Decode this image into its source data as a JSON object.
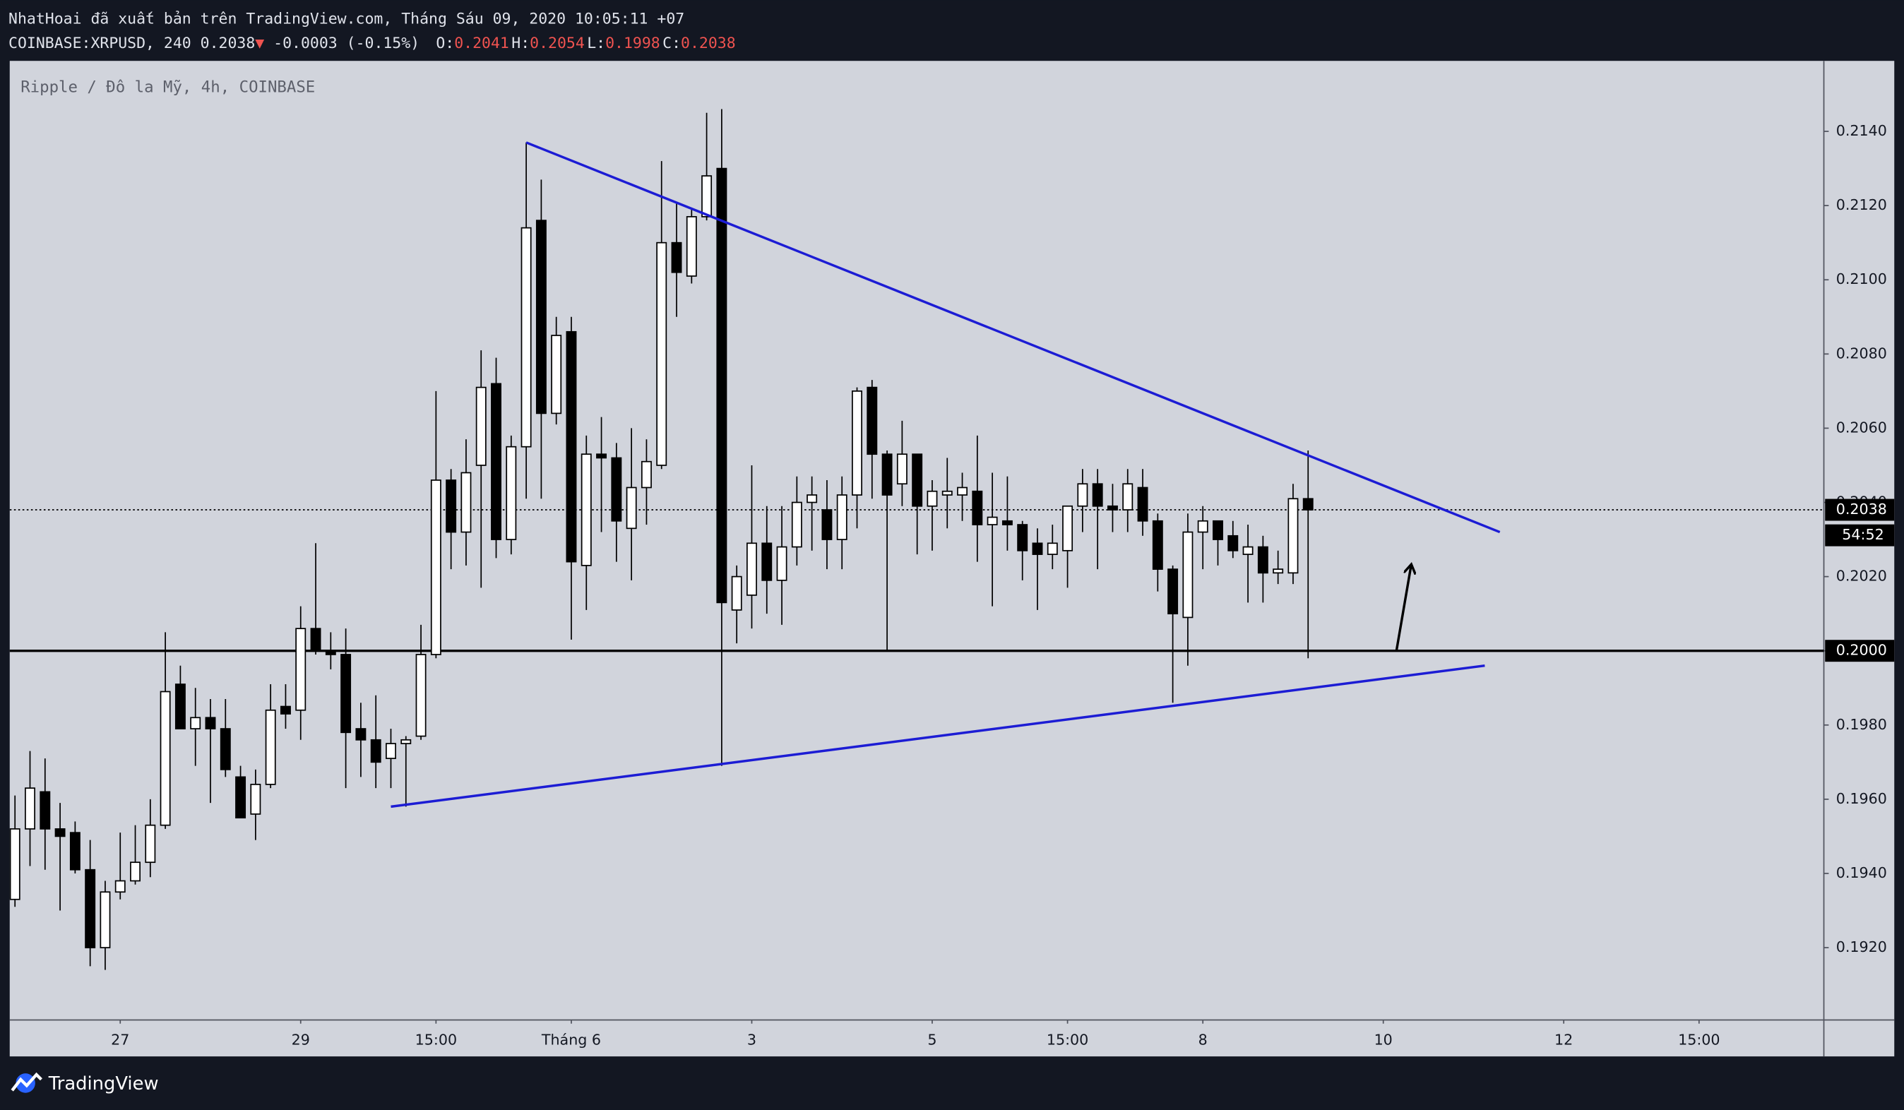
{
  "chart_data": {
    "type": "candlestick",
    "publication": "NhatHoai đã xuất bản trên TradingView.com, Tháng Sáu 09, 2020 10:05:11 +07",
    "symbol": "COINBASE:XRPUSD, 240",
    "last": 0.2038,
    "change_arrow": "▼",
    "change": "-0.0003 (-0.15%)",
    "ohlc_legend": [
      {
        "label": "O:",
        "value": 0.2041
      },
      {
        "label": "H:",
        "value": 0.2054
      },
      {
        "label": "L:",
        "value": 0.1998
      },
      {
        "label": "C:",
        "value": 0.2038
      }
    ],
    "title": "Ripple / Đô la Mỹ, 4h, COINBASE",
    "countdown": "54:52",
    "brand": "TradingView",
    "x": [
      -28,
      -24,
      -20,
      -16,
      -12,
      -8,
      -4,
      0,
      4,
      8,
      12,
      16,
      20,
      24,
      28,
      32,
      36,
      40,
      44,
      48,
      52,
      56,
      60,
      64,
      68,
      72,
      76,
      80,
      84,
      88,
      92,
      96,
      100,
      104,
      108,
      112,
      116,
      120,
      124,
      128,
      132,
      136,
      140,
      144,
      148,
      152,
      156,
      160,
      164,
      168,
      172,
      176,
      180,
      184,
      188,
      192,
      196,
      200,
      204,
      208,
      212,
      216,
      220,
      224,
      228,
      232,
      236,
      240,
      244,
      248,
      252,
      256,
      260,
      264,
      268,
      272,
      276,
      280,
      284,
      288,
      292,
      296,
      300,
      304,
      308,
      312,
      316
    ],
    "open": [
      0.1933,
      0.1952,
      0.1962,
      0.1952,
      0.1951,
      0.1941,
      0.192,
      0.1935,
      0.1938,
      0.1943,
      0.1953,
      0.1991,
      0.1979,
      0.1982,
      0.1979,
      0.1966,
      0.1956,
      0.1964,
      0.1985,
      0.1984,
      0.2006,
      0.2,
      0.1999,
      0.1979,
      0.1976,
      0.1971,
      0.1975,
      0.1977,
      0.1999,
      0.2046,
      0.2032,
      0.205,
      0.2072,
      0.203,
      0.2055,
      0.2116,
      0.2064,
      0.2086,
      0.2023,
      0.2053,
      0.2052,
      0.2033,
      0.2044,
      0.205,
      0.211,
      0.2101,
      0.2117,
      0.213,
      0.2011,
      0.2015,
      0.2029,
      0.2019,
      0.2028,
      0.204,
      0.2038,
      0.203,
      0.2042,
      0.2071,
      0.2053,
      0.2045,
      0.2053,
      0.2039,
      0.2042,
      0.2042,
      0.2043,
      0.2034,
      0.2035,
      0.2034,
      0.2029,
      0.2026,
      0.2027,
      0.2039,
      0.2045,
      0.2039,
      0.2038,
      0.2044,
      0.2035,
      0.2022,
      0.2009,
      0.2032,
      0.2035,
      0.2031,
      0.2026,
      0.2028,
      0.2021,
      0.2021,
      0.2041
    ],
    "high": [
      0.1961,
      0.1973,
      0.1971,
      0.1959,
      0.1954,
      0.1949,
      0.1938,
      0.1951,
      0.1953,
      0.196,
      0.2005,
      0.1996,
      0.199,
      0.1987,
      0.1987,
      0.1969,
      0.1968,
      0.1991,
      0.1991,
      0.2012,
      0.2029,
      0.2005,
      0.2006,
      0.1986,
      0.1988,
      0.1979,
      0.1977,
      0.2007,
      0.207,
      0.2049,
      0.2057,
      0.2081,
      0.2079,
      0.2058,
      0.2137,
      0.2127,
      0.209,
      0.209,
      0.2058,
      0.2063,
      0.2056,
      0.206,
      0.2057,
      0.2132,
      0.2121,
      0.2119,
      0.2145,
      0.2146,
      0.2023,
      0.205,
      0.2039,
      0.2039,
      0.2047,
      0.2047,
      0.2046,
      0.2047,
      0.2071,
      0.2073,
      0.2054,
      0.2062,
      0.2053,
      0.2046,
      0.2052,
      0.2048,
      0.2058,
      0.2048,
      0.2047,
      0.2035,
      0.2033,
      0.2034,
      0.2039,
      0.2049,
      0.2049,
      0.2045,
      0.2049,
      0.2049,
      0.2037,
      0.2023,
      0.2037,
      0.2039,
      0.2035,
      0.2035,
      0.2034,
      0.2031,
      0.2027,
      0.2045,
      0.2054
    ],
    "low": [
      0.1931,
      0.1942,
      0.1941,
      0.193,
      0.194,
      0.1915,
      0.1914,
      0.1933,
      0.1937,
      0.1939,
      0.1952,
      0.1979,
      0.1969,
      0.1959,
      0.1966,
      0.1956,
      0.1949,
      0.1963,
      0.1979,
      0.1976,
      0.1999,
      0.1995,
      0.1963,
      0.1966,
      0.1963,
      0.1963,
      0.1958,
      0.1976,
      0.1998,
      0.2022,
      0.2023,
      0.2017,
      0.2025,
      0.2026,
      0.2041,
      0.2041,
      0.2061,
      0.2003,
      0.2011,
      0.2032,
      0.2024,
      0.2019,
      0.2034,
      0.2049,
      0.209,
      0.2099,
      0.2116,
      0.1969,
      0.2002,
      0.2006,
      0.201,
      0.2007,
      0.2023,
      0.2027,
      0.2022,
      0.2022,
      0.2033,
      0.2041,
      0.2,
      0.2039,
      0.2026,
      0.2027,
      0.2033,
      0.2035,
      0.2024,
      0.2012,
      0.2027,
      0.2019,
      0.2011,
      0.2022,
      0.2017,
      0.2032,
      0.2022,
      0.2032,
      0.2032,
      0.2031,
      0.2016,
      0.1986,
      0.1996,
      0.2022,
      0.2023,
      0.2025,
      0.2013,
      0.2013,
      0.2018,
      0.2018,
      0.1998
    ],
    "close": [
      0.1952,
      0.1963,
      0.1952,
      0.195,
      0.1941,
      0.192,
      0.1935,
      0.1938,
      0.1943,
      0.1953,
      0.1989,
      0.1979,
      0.1982,
      0.1979,
      0.1968,
      0.1955,
      0.1964,
      0.1984,
      0.1983,
      0.2006,
      0.2,
      0.1999,
      0.1978,
      0.1976,
      0.197,
      0.1975,
      0.1976,
      0.1999,
      0.2046,
      0.2032,
      0.2048,
      0.2071,
      0.203,
      0.2055,
      0.2114,
      0.2064,
      0.2085,
      0.2024,
      0.2053,
      0.2052,
      0.2035,
      0.2044,
      0.2051,
      0.211,
      0.2102,
      0.2117,
      0.2128,
      0.2013,
      0.202,
      0.2029,
      0.2019,
      0.2028,
      0.204,
      0.2042,
      0.203,
      0.2042,
      0.207,
      0.2053,
      0.2042,
      0.2053,
      0.2039,
      0.2043,
      0.2043,
      0.2044,
      0.2034,
      0.2036,
      0.2034,
      0.2027,
      0.2026,
      0.2029,
      0.2039,
      0.2045,
      0.2039,
      0.2038,
      0.2045,
      0.2035,
      0.2022,
      0.201,
      0.2032,
      0.2035,
      0.203,
      0.2027,
      0.2028,
      0.2021,
      0.2022,
      0.2041,
      0.2038
    ],
    "up_color": "#ffffff",
    "down_color": "#000000",
    "wick_color": "#000000",
    "xlim": [
      -29.4,
      453.2
    ],
    "ylim": [
      0.19005,
      0.2159
    ],
    "xticks": [
      {
        "value": 0,
        "label": "27"
      },
      {
        "value": 48,
        "label": "29"
      },
      {
        "value": 84,
        "label": "15:00"
      },
      {
        "value": 120,
        "label": "Tháng 6"
      },
      {
        "value": 168,
        "label": "3"
      },
      {
        "value": 216,
        "label": "5"
      },
      {
        "value": 252,
        "label": "15:00"
      },
      {
        "value": 288,
        "label": "8"
      },
      {
        "value": 336,
        "label": "10"
      },
      {
        "value": 384,
        "label": "12"
      },
      {
        "value": 420,
        "label": "15:00"
      }
    ],
    "yticks": [
      {
        "value": 0.192,
        "label": "0.1920"
      },
      {
        "value": 0.194,
        "label": "0.1940"
      },
      {
        "value": 0.196,
        "label": "0.1960"
      },
      {
        "value": 0.198,
        "label": "0.1980"
      },
      {
        "value": 0.2,
        "label": "0.2000"
      },
      {
        "value": 0.202,
        "label": "0.2020"
      },
      {
        "value": 0.204,
        "label": "0.2040"
      },
      {
        "value": 0.206,
        "label": "0.2060"
      },
      {
        "value": 0.208,
        "label": "0.2080"
      },
      {
        "value": 0.21,
        "label": "0.2100"
      },
      {
        "value": 0.212,
        "label": "0.2120"
      },
      {
        "value": 0.214,
        "label": "0.2140"
      }
    ],
    "grid": false,
    "hline": {
      "value": 0.2,
      "label": "0.2000",
      "color": "#000000"
    },
    "trendline_color": "#1c1cd4",
    "trendlines": [
      {
        "x": [
          108,
          367
        ],
        "y": [
          0.2137,
          0.2032
        ]
      },
      {
        "x": [
          72,
          363
        ],
        "y": [
          0.1958,
          0.1996
        ]
      }
    ],
    "arrow": {
      "x": [
        339.5,
        343.4
      ],
      "y": [
        0.2,
        0.2023
      ],
      "color": "#000000"
    }
  }
}
